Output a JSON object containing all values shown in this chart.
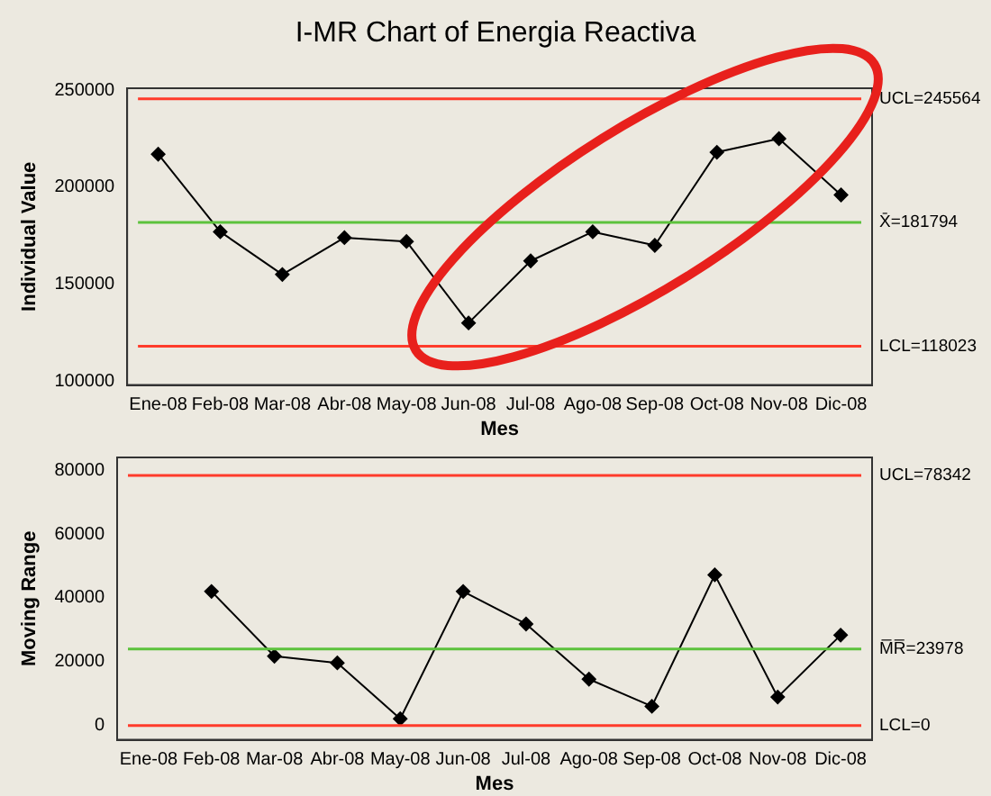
{
  "chart_data": [
    {
      "type": "line",
      "title": "I-MR Chart of Energia Reactiva",
      "categories": [
        "Ene-08",
        "Feb-08",
        "Mar-08",
        "Abr-08",
        "May-08",
        "Jun-08",
        "Jul-08",
        "Ago-08",
        "Sep-08",
        "Oct-08",
        "Nov-08",
        "Dic-08"
      ],
      "series": [
        {
          "color": "#000000",
          "values": [
            217000,
            177000,
            155000,
            174000,
            172000,
            130000,
            162000,
            177000,
            170000,
            218000,
            225000,
            196000
          ]
        }
      ],
      "xlabel": "Mes",
      "ylabel": "Individual Value",
      "ylim": [
        98000,
        251000
      ],
      "yticks": [
        100000,
        150000,
        200000,
        250000
      ],
      "marker": "diamond",
      "ref_lines": [
        {
          "axis": "y",
          "value": 245564,
          "label": "UCL=245564",
          "color": "#ff3b2b"
        },
        {
          "axis": "y",
          "value": 181794,
          "label": "X̄=181794",
          "color": "#5cc23c"
        },
        {
          "axis": "y",
          "value": 118023,
          "label": "LCL=118023",
          "color": "#ff3b2b"
        }
      ]
    },
    {
      "type": "line",
      "categories": [
        "Ene-08",
        "Feb-08",
        "Mar-08",
        "Abr-08",
        "May-08",
        "Jun-08",
        "Jul-08",
        "Ago-08",
        "Sep-08",
        "Oct-08",
        "Nov-08",
        "Dic-08"
      ],
      "series": [
        {
          "color": "#000000",
          "values": [
            null,
            42000,
            21700,
            19600,
            2100,
            42000,
            31800,
            14500,
            6000,
            47200,
            8900,
            28300
          ]
        }
      ],
      "xlabel": "Mes",
      "ylabel": "Moving Range",
      "ylim": [
        -4500,
        84000
      ],
      "yticks": [
        0,
        20000,
        40000,
        60000,
        80000
      ],
      "marker": "diamond",
      "ref_lines": [
        {
          "axis": "y",
          "value": 78342,
          "label": "UCL=78342",
          "color": "#ff3b2b"
        },
        {
          "axis": "y",
          "value": 23978,
          "label": "M̅R̅=23978",
          "color": "#5cc23c"
        },
        {
          "axis": "y",
          "value": 0,
          "label": "LCL=0",
          "color": "#ff3b2b"
        }
      ]
    }
  ]
}
